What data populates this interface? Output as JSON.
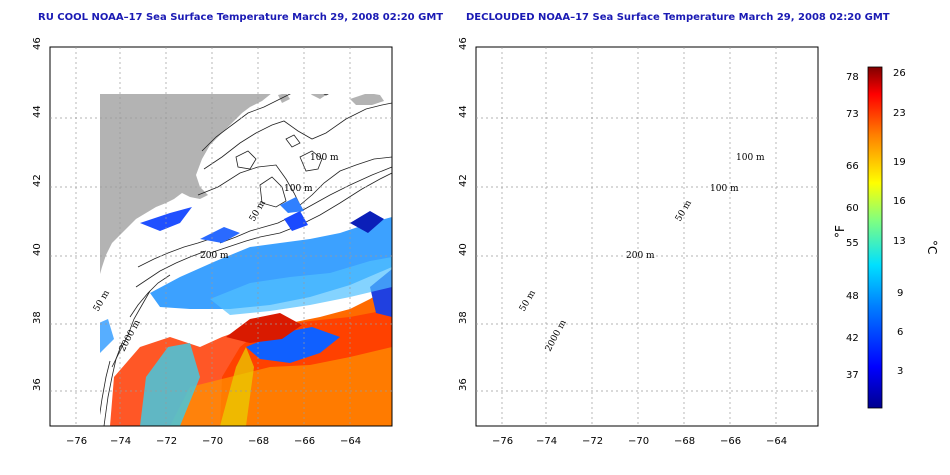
{
  "panels": [
    {
      "title": "RU COOL NOAA–17 Sea Surface Temperature March 29, 2008 02:20 GMT"
    },
    {
      "title": "DECLOUDED NOAA–17 Sea Surface Temperature March 29, 2008 02:20 GMT"
    }
  ],
  "axes": {
    "lon_ticks": [
      "−76",
      "−74",
      "−72",
      "−70",
      "−68",
      "−66",
      "−64"
    ],
    "lat_ticks": [
      "36",
      "38",
      "40",
      "42",
      "44",
      "46"
    ]
  },
  "contours": [
    "100 m",
    "100 m",
    "50 m",
    "200 m",
    "50 m",
    "2000 m"
  ],
  "colorbar": {
    "fahrenheit_ticks": [
      "78",
      "73",
      "66",
      "60",
      "55",
      "48",
      "42",
      "37"
    ],
    "celsius_ticks": [
      "26",
      "23",
      "19",
      "16",
      "13",
      "9",
      "6",
      "3"
    ],
    "unit_f": "°F",
    "unit_c": "°C"
  },
  "colors": {
    "land": "#b3b3b3",
    "title": "#1a1ab4",
    "grid": "#9a9a9a"
  }
}
